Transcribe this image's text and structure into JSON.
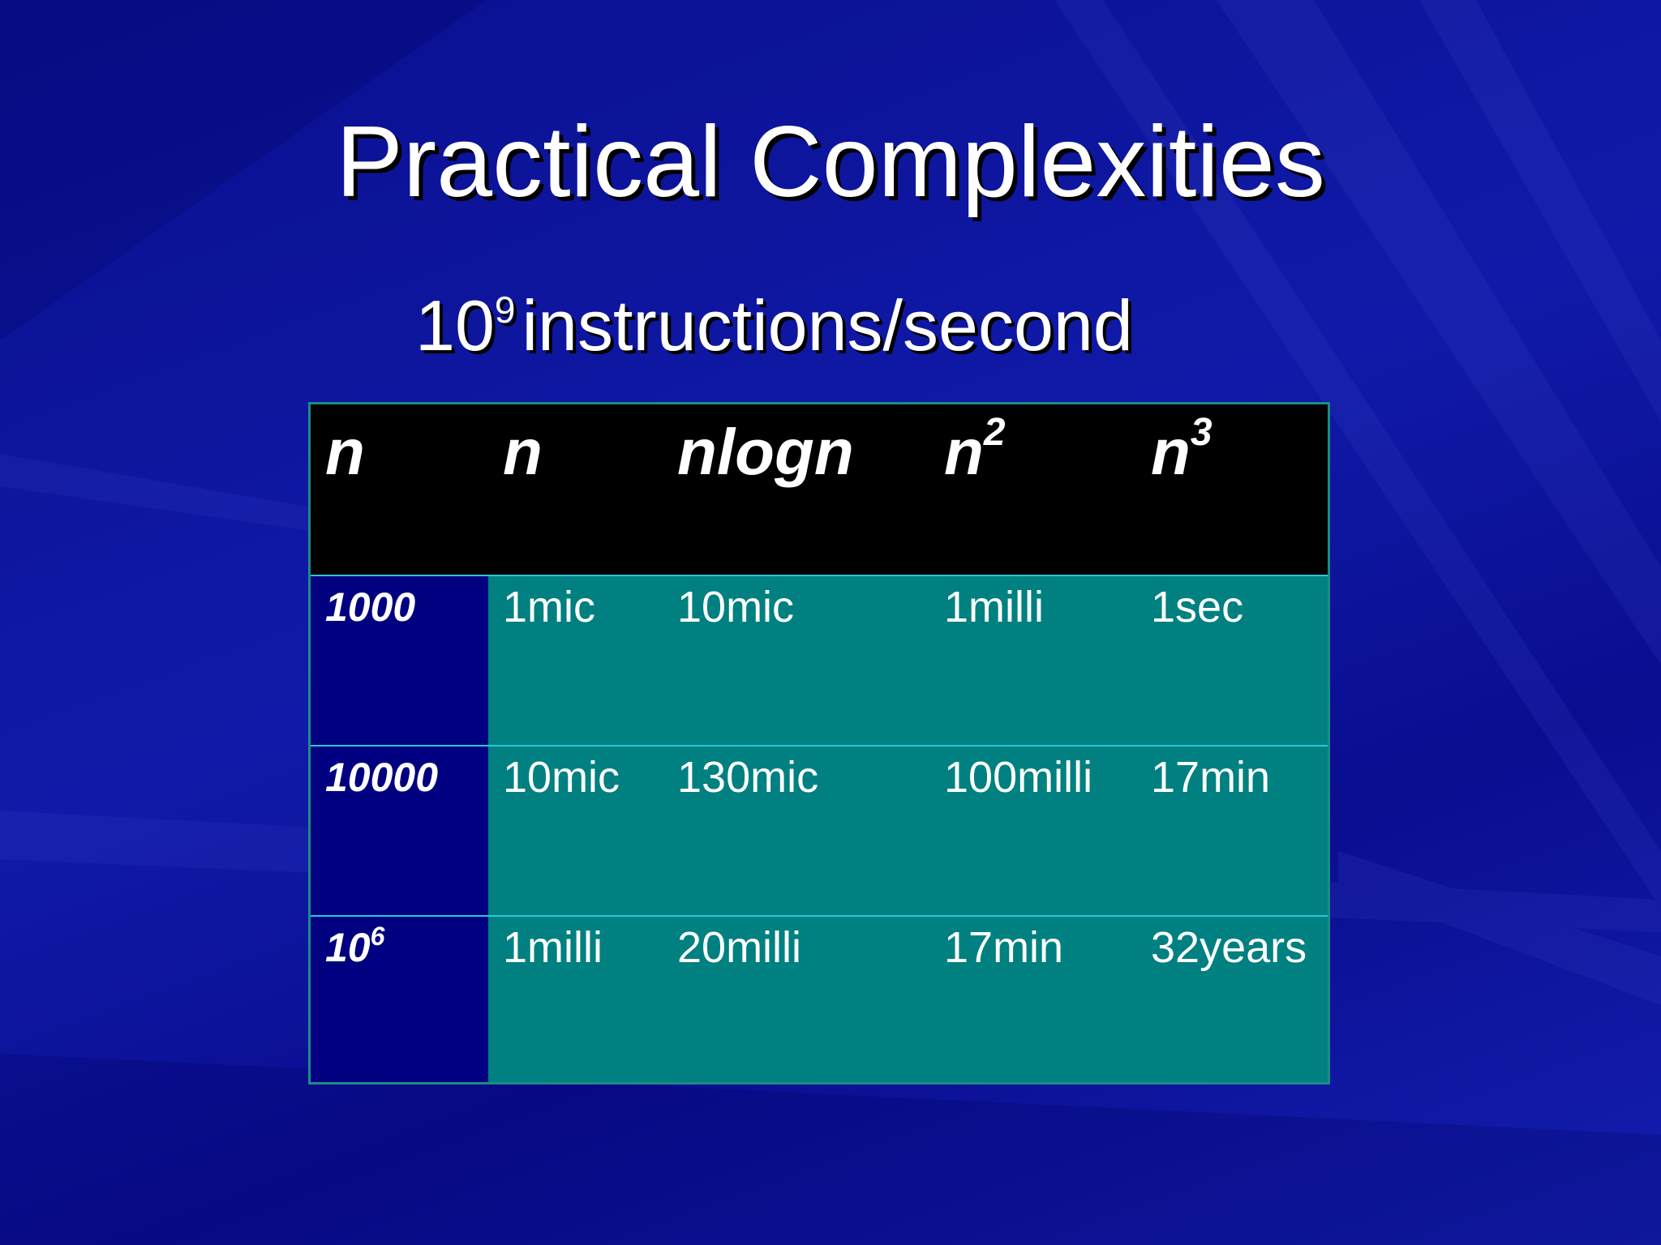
{
  "slide": {
    "title": "Practical Complexities",
    "subtitle": {
      "base": "10",
      "exponent": "9",
      "text": "instructions/second"
    }
  },
  "table": {
    "headers": [
      {
        "base": "n",
        "exp": ""
      },
      {
        "base": "n",
        "exp": ""
      },
      {
        "base": "nlogn",
        "exp": ""
      },
      {
        "base": "n",
        "exp": "2"
      },
      {
        "base": "n",
        "exp": "3"
      }
    ],
    "rows": [
      {
        "label": {
          "base": "1000",
          "exp": ""
        },
        "cells": [
          "1mic",
          "10mic",
          "1milli",
          "1sec"
        ]
      },
      {
        "label": {
          "base": "10000",
          "exp": ""
        },
        "cells": [
          "10mic",
          "130mic",
          "100milli",
          "17min"
        ]
      },
      {
        "label": {
          "base": "10",
          "exp": "6"
        },
        "cells": [
          "1milli",
          "20milli",
          "17min",
          "32years"
        ]
      }
    ]
  },
  "colors": {
    "background": "#0a0f8f",
    "header_bg": "#000000",
    "row_label_bg": "#000080",
    "cell_bg": "#008080",
    "row_divider": "#29c8d6",
    "text": "#ffffff"
  }
}
